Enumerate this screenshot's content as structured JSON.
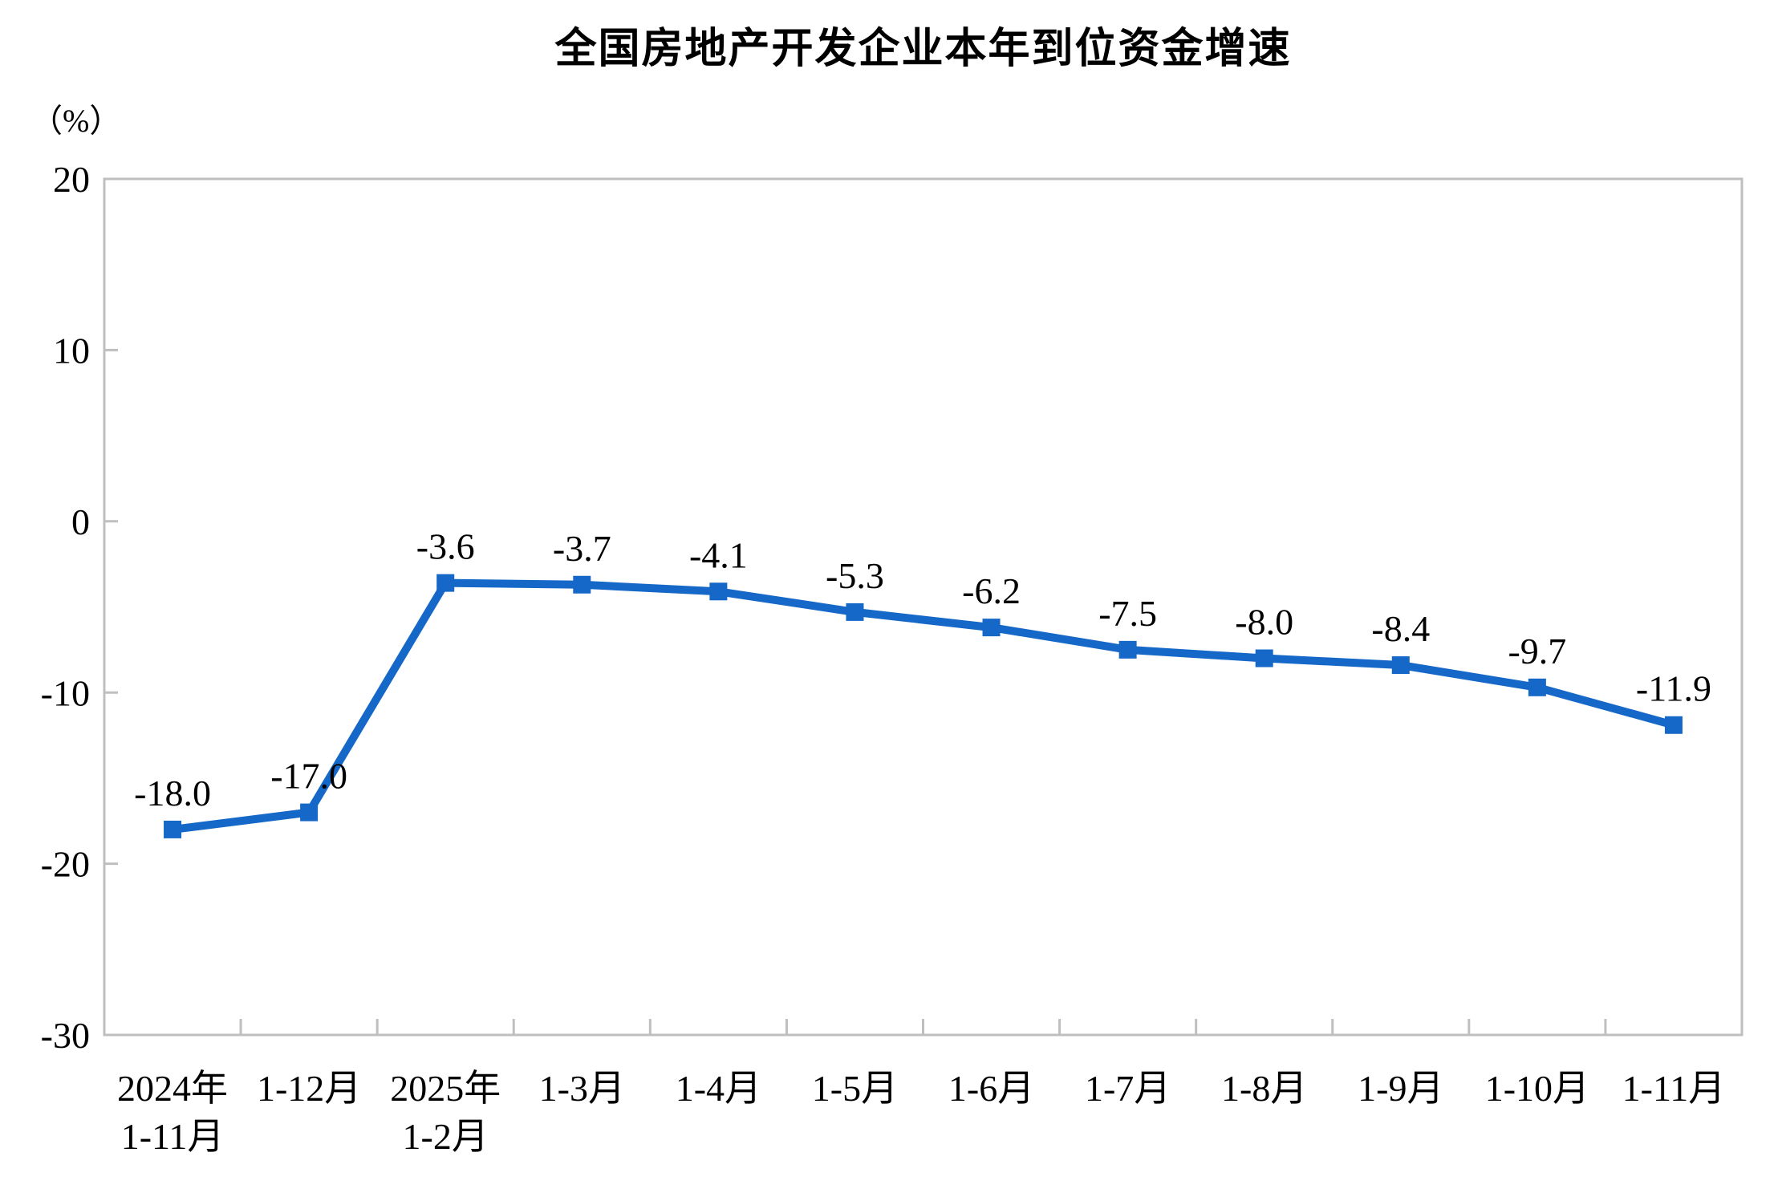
{
  "chart_data": {
    "type": "line",
    "title": "全国房地产开发企业本年到位资金增速",
    "ylabel": "（%）",
    "xlabel": "",
    "ylim": [
      -30,
      20
    ],
    "yticks": [
      20,
      10,
      0,
      -10,
      -20,
      -30
    ],
    "grid": false,
    "legend_position": "none",
    "categories": [
      [
        "2024年",
        "1-11月"
      ],
      [
        "1-12月"
      ],
      [
        "2025年",
        "1-2月"
      ],
      [
        "1-3月"
      ],
      [
        "1-4月"
      ],
      [
        "1-5月"
      ],
      [
        "1-6月"
      ],
      [
        "1-7月"
      ],
      [
        "1-8月"
      ],
      [
        "1-9月"
      ],
      [
        "1-10月"
      ],
      [
        "1-11月"
      ]
    ],
    "values": [
      -18.0,
      -17.0,
      -3.6,
      -3.7,
      -4.1,
      -5.3,
      -6.2,
      -7.5,
      -8.0,
      -8.4,
      -9.7,
      -11.9
    ],
    "point_labels": [
      "-18.0",
      "-17.0",
      "-3.6",
      "-3.7",
      "-4.1",
      "-5.3",
      "-6.2",
      "-7.5",
      "-8.0",
      "-8.4",
      "-9.7",
      "-11.9"
    ],
    "colors": {
      "line": "#1668C8",
      "marker": "#1668C8",
      "axis": "#BFBFBF",
      "text": "#000000",
      "background": "#FFFFFF"
    }
  }
}
